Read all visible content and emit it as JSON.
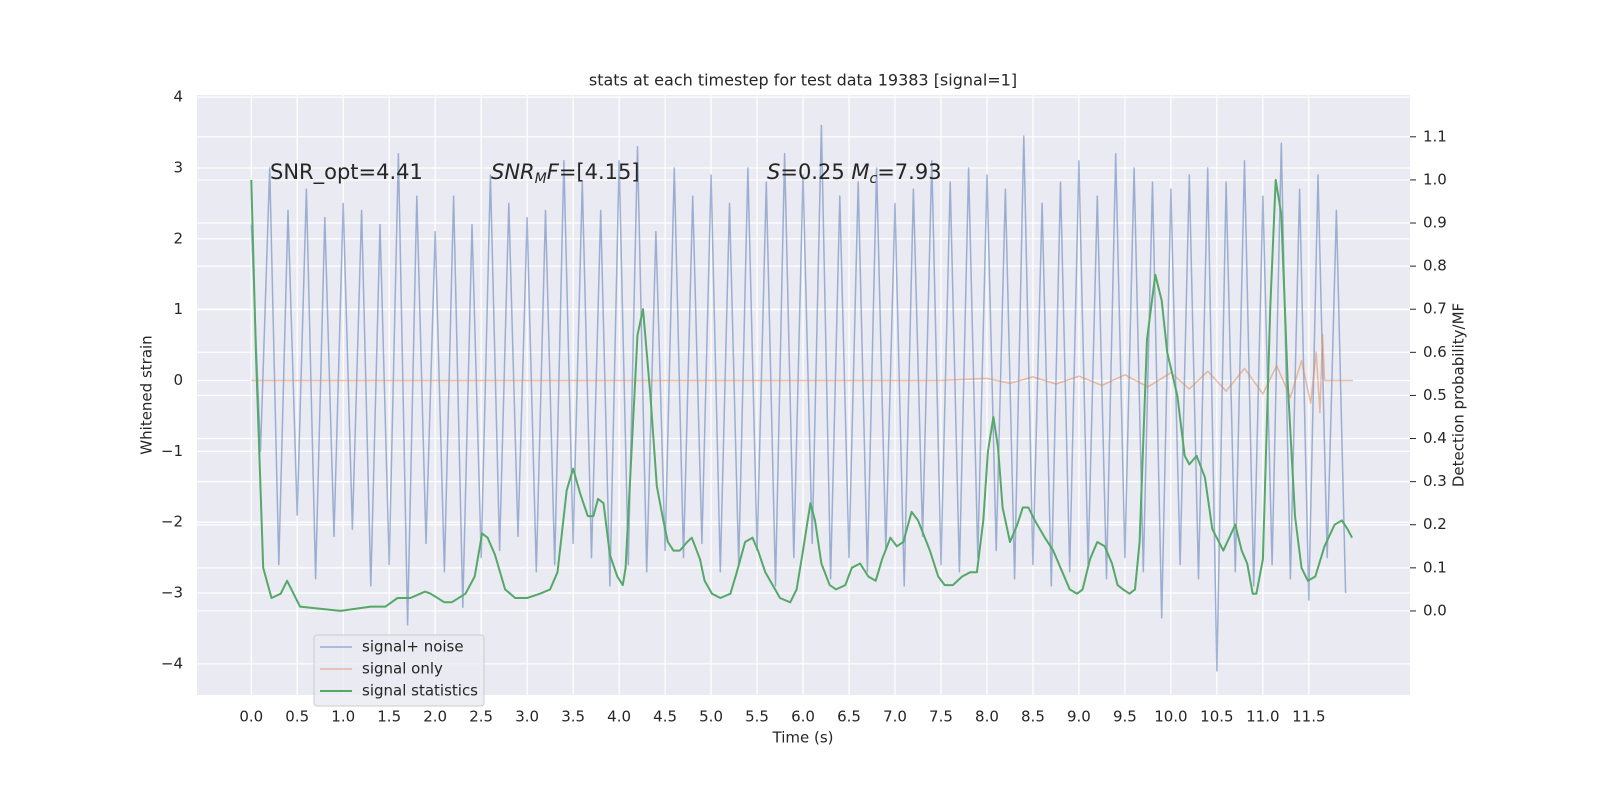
{
  "chart_data": {
    "type": "line",
    "title": "stats at each timestep for test data 19383 [signal=1]",
    "xlabel": "Time (s)",
    "ylabel": "Whitened strain",
    "y2label": "Detection probability/MF",
    "xlim": [
      -0.59,
      12.6
    ],
    "ylim": [
      -4.44,
      4.03
    ],
    "y2lim": [
      -0.195,
      1.197
    ],
    "xticks": [
      {
        "value": 0,
        "label": "0.0"
      },
      0.5,
      {
        "value": 1,
        "label": "1.0"
      },
      1.5,
      {
        "value": 2,
        "label": "2.0"
      },
      2.5,
      {
        "value": 3,
        "label": "3.0"
      },
      3.5,
      {
        "value": 4,
        "label": "4.0"
      },
      4.5,
      {
        "value": 5,
        "label": "5.0"
      },
      5.5,
      {
        "value": 6,
        "label": "6.0"
      },
      6.5,
      {
        "value": 7,
        "label": "7.0"
      },
      7.5,
      {
        "value": 8,
        "label": "8.0"
      },
      8.5,
      {
        "value": 9,
        "label": "9.0"
      },
      9.5,
      {
        "value": 10,
        "label": "10.0"
      },
      10.5,
      {
        "value": 11,
        "label": "11.0"
      },
      11.5
    ],
    "yticks": [
      {
        "value": -4,
        "label": "−4"
      },
      {
        "value": -3,
        "label": "−3"
      },
      {
        "value": -2,
        "label": "−2"
      },
      {
        "value": -1,
        "label": "−1"
      },
      0,
      1,
      2,
      3,
      4
    ],
    "y2ticks": [
      {
        "value": 0,
        "label": "0.0"
      },
      0.1,
      0.2,
      0.3,
      0.4,
      0.5,
      0.6,
      0.7,
      0.8,
      0.9,
      {
        "value": 1,
        "label": "1.0"
      },
      1.1
    ],
    "grid": true,
    "legend_position": "lower left",
    "annotations": [
      [
        {
          "text": "SNR_opt=4.41"
        }
      ],
      [
        {
          "text": "SNR",
          "italic": true
        },
        {
          "text": "M",
          "italic": true,
          "sub": true
        },
        {
          "text": "F",
          "italic": true
        },
        {
          "text": "=[4.15]"
        }
      ],
      [
        {
          "text": "S",
          "italic": true
        },
        {
          "text": "=0.25   "
        },
        {
          "text": "M",
          "italic": true
        },
        {
          "text": "c",
          "italic": true,
          "sub": true
        },
        {
          "text": "=7.93"
        }
      ]
    ],
    "series": [
      {
        "name": "signal+ noise",
        "color": "#4c72b0",
        "opacity": 0.5,
        "x": [
          0,
          0.1,
          0.2,
          0.3,
          0.4,
          0.5,
          0.6,
          0.7,
          0.8,
          0.9,
          1,
          1.1,
          1.2,
          1.3,
          1.4,
          1.5,
          1.6,
          1.7,
          1.8,
          1.9,
          2,
          2.1,
          2.2,
          2.3,
          2.4,
          2.5,
          2.6,
          2.7,
          2.8,
          2.9,
          3,
          3.1,
          3.2,
          3.3,
          3.4,
          3.5,
          3.6,
          3.7,
          3.8,
          3.9,
          4,
          4.1,
          4.2,
          4.3,
          4.4,
          4.5,
          4.6,
          4.7,
          4.8,
          4.9,
          5,
          5.1,
          5.2,
          5.3,
          5.4,
          5.5,
          5.6,
          5.7,
          5.8,
          5.9,
          6,
          6.1,
          6.2,
          6.3,
          6.4,
          6.5,
          6.6,
          6.7,
          6.8,
          6.9,
          7,
          7.1,
          7.2,
          7.3,
          7.4,
          7.5,
          7.6,
          7.7,
          7.8,
          7.9,
          8,
          8.1,
          8.2,
          8.3,
          8.4,
          8.5,
          8.6,
          8.7,
          8.8,
          8.9,
          9,
          9.1,
          9.2,
          9.3,
          9.4,
          9.5,
          9.6,
          9.7,
          9.8,
          9.9,
          10,
          10.1,
          10.2,
          10.3,
          10.4,
          10.5,
          10.6,
          10.7,
          10.8,
          10.9,
          11,
          11.1,
          11.2,
          11.3,
          11.4,
          11.5,
          11.6,
          11.7,
          11.8,
          11.9
        ],
        "values": [
          2.2,
          -1.0,
          3.0,
          -2.6,
          2.4,
          -1.9,
          2.7,
          -2.8,
          2.3,
          -2.2,
          2.5,
          -2.1,
          2.4,
          -2.9,
          2.2,
          -2.6,
          3.2,
          -3.45,
          2.6,
          -2.3,
          2.1,
          -2.7,
          2.6,
          -3.2,
          2.2,
          -2.5,
          2.9,
          -2.4,
          2.5,
          -2.2,
          2.3,
          -2.7,
          2.4,
          -2.6,
          3.1,
          -2.3,
          2.8,
          -2.5,
          2.4,
          -2.9,
          3.1,
          -2.6,
          3.3,
          -2.7,
          2.1,
          -2.4,
          3.0,
          -2.5,
          2.6,
          -2.3,
          2.9,
          -2.7,
          2.5,
          -2.6,
          3.0,
          -2.4,
          2.8,
          -2.9,
          3.2,
          -2.5,
          2.9,
          -2.3,
          3.6,
          -2.8,
          2.6,
          -2.5,
          2.8,
          -2.7,
          3.0,
          -2.4,
          2.5,
          -2.9,
          2.7,
          -2.2,
          3.1,
          -2.6,
          2.8,
          -2.7,
          3.0,
          -2.5,
          2.9,
          -2.4,
          2.7,
          -2.8,
          3.45,
          -2.6,
          2.5,
          -2.9,
          2.8,
          -2.7,
          3.1,
          -2.6,
          2.6,
          -2.8,
          3.2,
          -2.5,
          3.0,
          -2.7,
          2.8,
          -3.35,
          2.7,
          -2.6,
          2.9,
          -2.8,
          3.0,
          -4.1,
          2.8,
          -2.7,
          3.1,
          -2.9,
          2.6,
          -2.6,
          3.35,
          -2.8,
          2.7,
          -3.1,
          2.9,
          -2.5,
          2.4,
          -3.0
        ]
      },
      {
        "name": "signal only",
        "color": "#dd8452",
        "opacity": 0.5,
        "x": [
          0,
          7.5,
          8,
          8.25,
          8.5,
          8.75,
          9,
          9.25,
          9.5,
          9.75,
          10,
          10.2,
          10.4,
          10.6,
          10.8,
          11,
          11.15,
          11.3,
          11.42,
          11.52,
          11.58,
          11.62,
          11.65,
          11.67,
          11.98
        ],
        "values": [
          0,
          0,
          0.03,
          -0.04,
          0.05,
          -0.05,
          0.06,
          -0.07,
          0.08,
          -0.09,
          0.11,
          -0.12,
          0.13,
          -0.15,
          0.17,
          -0.19,
          0.21,
          -0.24,
          0.28,
          -0.32,
          0.4,
          -0.45,
          0.65,
          0,
          0
        ]
      },
      {
        "name": "signal statistics",
        "color": "#55a868",
        "axis": "y2",
        "x": [
          0,
          0.05,
          0.13,
          0.22,
          0.32,
          0.39,
          0.53,
          0.75,
          0.97,
          1.3,
          1.46,
          1.59,
          1.73,
          1.89,
          1.95,
          2.1,
          2.18,
          2.33,
          2.43,
          2.51,
          2.57,
          2.65,
          2.76,
          2.87,
          3,
          3.14,
          3.25,
          3.33,
          3.43,
          3.5,
          3.58,
          3.66,
          3.72,
          3.77,
          3.83,
          3.9,
          3.98,
          4.04,
          4.07,
          4.2,
          4.26,
          4.34,
          4.41,
          4.48,
          4.53,
          4.59,
          4.66,
          4.74,
          4.79,
          4.88,
          4.93,
          5.01,
          5.1,
          5.21,
          5.28,
          5.37,
          5.45,
          5.51,
          5.59,
          5.67,
          5.75,
          5.86,
          5.93,
          6,
          6.08,
          6.13,
          6.2,
          6.29,
          6.36,
          6.46,
          6.53,
          6.62,
          6.71,
          6.79,
          6.86,
          6.95,
          7.02,
          7.09,
          7.18,
          7.25,
          7.38,
          7.47,
          7.54,
          7.63,
          7.73,
          7.82,
          7.89,
          7.96,
          8.01,
          8.07,
          8.12,
          8.17,
          8.25,
          8.33,
          8.39,
          8.45,
          8.52,
          8.63,
          8.72,
          8.82,
          8.9,
          8.98,
          9.04,
          9.12,
          9.2,
          9.28,
          9.36,
          9.42,
          9.48,
          9.55,
          9.61,
          9.66,
          9.74,
          9.83,
          9.9,
          9.96,
          10.07,
          10.15,
          10.2,
          10.28,
          10.37,
          10.45,
          10.57,
          10.7,
          10.77,
          10.83,
          10.89,
          10.93,
          11,
          11.08,
          11.14,
          11.2,
          11.27,
          11.35,
          11.42,
          11.49,
          11.57,
          11.67,
          11.78,
          11.86,
          11.92,
          11.97
        ],
        "values": [
          1.0,
          0.6,
          0.1,
          0.03,
          0.04,
          0.07,
          0.01,
          0.005,
          0.0,
          0.01,
          0.01,
          0.03,
          0.03,
          0.045,
          0.04,
          0.02,
          0.02,
          0.04,
          0.08,
          0.18,
          0.17,
          0.13,
          0.05,
          0.03,
          0.03,
          0.04,
          0.05,
          0.09,
          0.28,
          0.33,
          0.27,
          0.22,
          0.22,
          0.26,
          0.25,
          0.13,
          0.08,
          0.06,
          0.1,
          0.64,
          0.7,
          0.5,
          0.29,
          0.21,
          0.16,
          0.14,
          0.14,
          0.16,
          0.17,
          0.12,
          0.07,
          0.04,
          0.03,
          0.04,
          0.09,
          0.16,
          0.17,
          0.14,
          0.09,
          0.06,
          0.03,
          0.02,
          0.05,
          0.14,
          0.25,
          0.21,
          0.11,
          0.06,
          0.05,
          0.06,
          0.1,
          0.11,
          0.08,
          0.07,
          0.12,
          0.17,
          0.15,
          0.16,
          0.23,
          0.21,
          0.14,
          0.08,
          0.06,
          0.06,
          0.08,
          0.09,
          0.09,
          0.21,
          0.37,
          0.45,
          0.38,
          0.24,
          0.16,
          0.2,
          0.24,
          0.24,
          0.21,
          0.17,
          0.14,
          0.09,
          0.05,
          0.04,
          0.05,
          0.12,
          0.16,
          0.15,
          0.11,
          0.06,
          0.05,
          0.04,
          0.05,
          0.16,
          0.63,
          0.78,
          0.72,
          0.6,
          0.5,
          0.36,
          0.34,
          0.36,
          0.31,
          0.19,
          0.14,
          0.2,
          0.14,
          0.11,
          0.04,
          0.04,
          0.12,
          0.7,
          1.0,
          0.92,
          0.53,
          0.22,
          0.1,
          0.07,
          0.08,
          0.15,
          0.2,
          0.21,
          0.19,
          0.17
        ]
      }
    ]
  }
}
